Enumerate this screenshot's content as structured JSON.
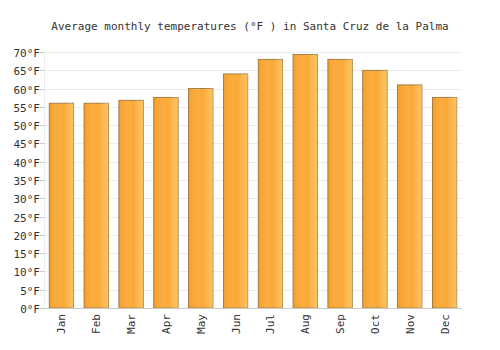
{
  "chart_data": {
    "type": "bar",
    "title": "Average monthly temperatures (°F ) in Santa Cruz de la Palma",
    "categories": [
      "Jan",
      "Feb",
      "Mar",
      "Apr",
      "May",
      "Jun",
      "Jul",
      "Aug",
      "Sep",
      "Oct",
      "Nov",
      "Dec"
    ],
    "values": [
      56,
      56,
      56.8,
      57.6,
      60,
      64,
      68,
      69.3,
      68,
      65,
      61,
      57.6
    ],
    "color": "#fba935",
    "ylim": [
      0,
      70
    ],
    "yticks": [
      {
        "value": 0,
        "label": "0°F"
      },
      {
        "value": 5,
        "label": "5°F"
      },
      {
        "value": 10,
        "label": "10°F"
      },
      {
        "value": 15,
        "label": "15°F"
      },
      {
        "value": 20,
        "label": "20°F"
      },
      {
        "value": 25,
        "label": "25°F"
      },
      {
        "value": 30,
        "label": "30°F"
      },
      {
        "value": 35,
        "label": "35°F"
      },
      {
        "value": 40,
        "label": "40°F"
      },
      {
        "value": 45,
        "label": "45°F"
      },
      {
        "value": 50,
        "label": "50°F"
      },
      {
        "value": 55,
        "label": "55°F"
      },
      {
        "value": 60,
        "label": "60°F"
      },
      {
        "value": 65,
        "label": "65°F"
      },
      {
        "value": 70,
        "label": "70°F"
      }
    ],
    "grid": true
  }
}
